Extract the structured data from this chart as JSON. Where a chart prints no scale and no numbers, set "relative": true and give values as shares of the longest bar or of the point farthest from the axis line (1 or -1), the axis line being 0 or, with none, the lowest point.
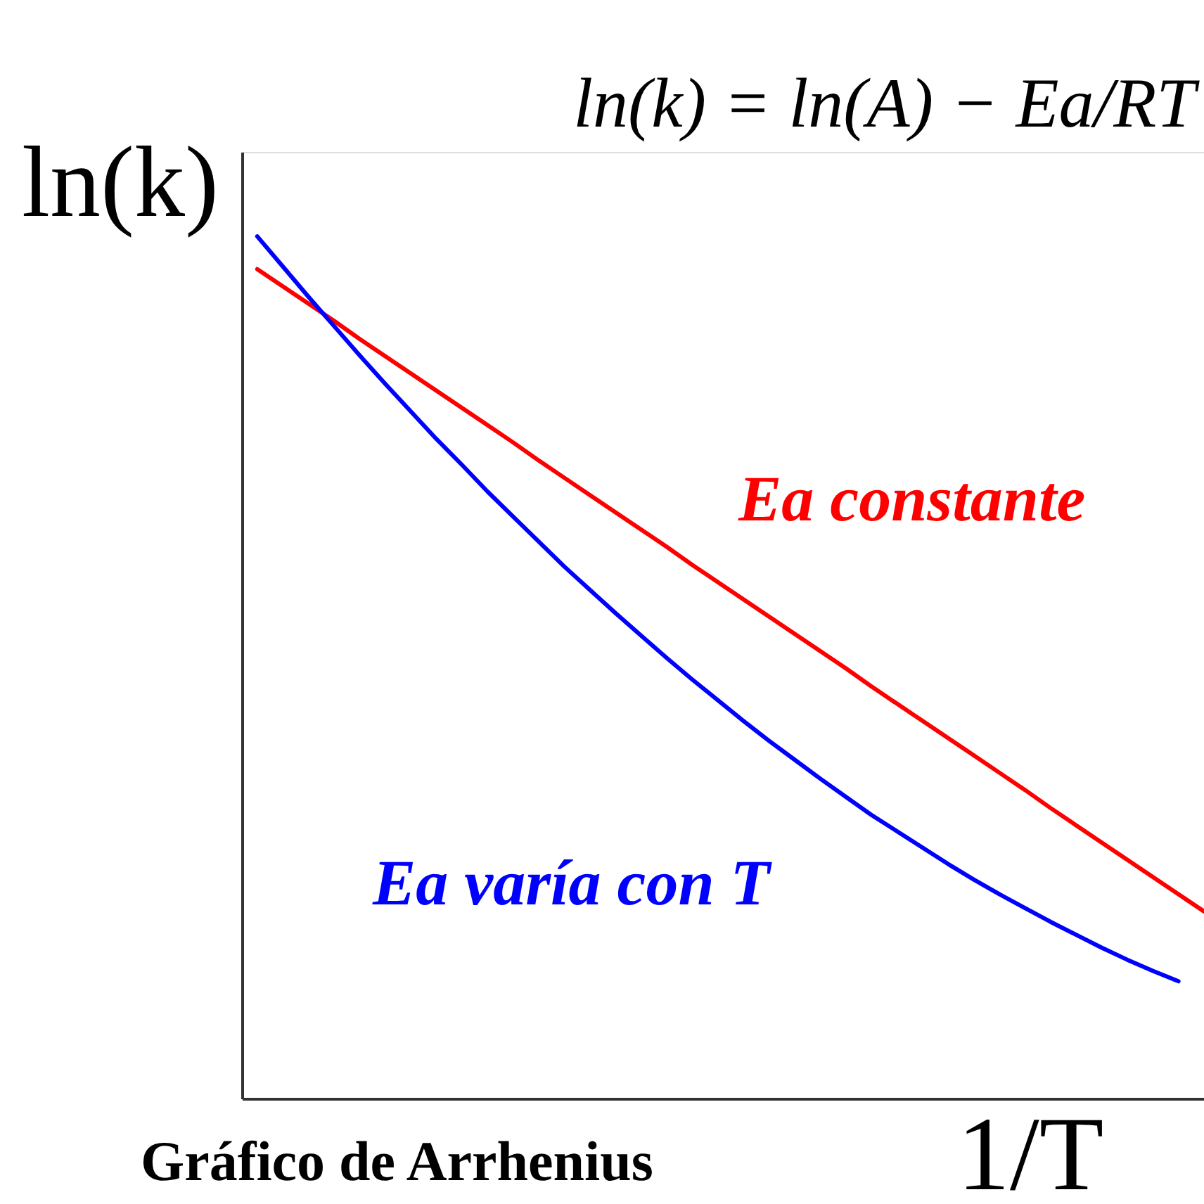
{
  "chart_data": {
    "type": "line",
    "title": "Gráfico de Arrhenius",
    "xlabel": "1/T",
    "ylabel": "ln(k)",
    "annotations": [
      "ln(k) = ln(A) − Ea/RT"
    ],
    "categories": [
      null,
      null,
      null,
      null,
      null,
      null,
      null,
      null,
      null,
      null,
      null,
      null,
      null,
      null,
      null,
      null,
      null,
      null,
      null,
      null,
      null,
      null,
      null,
      null,
      null,
      null,
      null,
      null,
      null,
      null,
      null,
      null,
      null,
      null,
      null,
      null,
      null,
      null
    ],
    "relative": true,
    "series": [
      {
        "name": "Ea constante",
        "color": "#ff0000",
        "values": [
          0.962,
          0.942,
          0.922,
          0.902,
          0.881,
          0.861,
          0.841,
          0.821,
          0.801,
          0.781,
          0.761,
          0.74,
          0.72,
          0.7,
          0.68,
          0.66,
          0.64,
          0.619,
          0.599,
          0.579,
          0.559,
          0.539,
          0.519,
          0.499,
          0.478,
          0.458,
          0.438,
          0.418,
          0.398,
          0.378,
          0.358,
          0.337,
          0.317,
          0.297,
          0.277,
          0.257,
          0.237,
          0.217
        ]
      },
      {
        "name": "Ea varía con T",
        "color": "#0000ff",
        "values": [
          1.0,
          0.965,
          0.93,
          0.896,
          0.862,
          0.829,
          0.797,
          0.765,
          0.735,
          0.704,
          0.675,
          0.646,
          0.617,
          0.59,
          0.563,
          0.537,
          0.511,
          0.486,
          0.462,
          0.438,
          0.415,
          0.393,
          0.371,
          0.35,
          0.329,
          0.31,
          0.291,
          0.272,
          0.254,
          0.237,
          0.221,
          0.205,
          0.19,
          0.175,
          0.161,
          0.148,
          0.136,
          null
        ]
      }
    ],
    "legend": false,
    "grid": false,
    "marker": "none",
    "line_style": "solid"
  }
}
